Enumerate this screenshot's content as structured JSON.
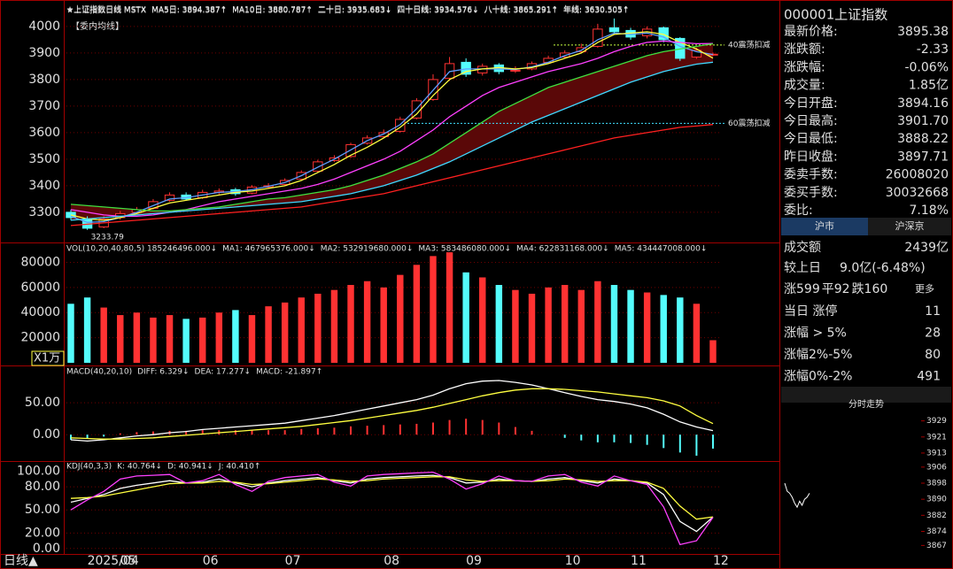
{
  "chart_data": [
    {
      "type": "candlestick",
      "title": "★上证指数日线 MSTX",
      "subtitle": "【委内均线】",
      "min_label": "3233.79",
      "categories": [
        null,
        "2025/04",
        null,
        "05",
        null,
        null,
        null,
        null,
        "06",
        null,
        null,
        null,
        null,
        "07",
        null,
        null,
        null,
        null,
        null,
        "08",
        null,
        null,
        null,
        null,
        "09",
        null,
        null,
        null,
        null,
        null,
        "10",
        null,
        null,
        null,
        "11",
        null,
        null,
        null,
        null,
        "12"
      ],
      "open": [
        3300,
        3275,
        3245,
        3280,
        3300,
        3315,
        3345,
        3365,
        3355,
        3375,
        3385,
        3372,
        3395,
        3405,
        3425,
        3455,
        3495,
        3510,
        3560,
        3585,
        3605,
        3655,
        3725,
        3805,
        3865,
        3825,
        3855,
        3835,
        3840,
        3865,
        3885,
        3905,
        3925,
        3995,
        3985,
        3965,
        3995,
        3955,
        3885,
        3894.16
      ],
      "high": [
        3310,
        3285,
        3285,
        3305,
        3320,
        3350,
        3375,
        3375,
        3385,
        3390,
        3392,
        3402,
        3410,
        3428,
        3458,
        3498,
        3515,
        3562,
        3590,
        3612,
        3660,
        3730,
        3820,
        3885,
        3880,
        3860,
        3862,
        3850,
        3868,
        3890,
        3910,
        3935,
        4010,
        4030,
        3995,
        4000,
        4000,
        3960,
        3920,
        3901.7
      ],
      "low": [
        3270,
        3233.79,
        3240,
        3272,
        3295,
        3310,
        3340,
        3345,
        3350,
        3368,
        3362,
        3368,
        3390,
        3400,
        3420,
        3450,
        3490,
        3505,
        3555,
        3578,
        3600,
        3650,
        3720,
        3795,
        3810,
        3815,
        3820,
        3825,
        3835,
        3860,
        3880,
        3900,
        3920,
        3970,
        3950,
        3955,
        3940,
        3870,
        3878,
        3888.22
      ],
      "close": [
        3280,
        3240,
        3275,
        3295,
        3310,
        3340,
        3365,
        3350,
        3375,
        3380,
        3370,
        3395,
        3400,
        3420,
        3450,
        3490,
        3505,
        3555,
        3580,
        3600,
        3650,
        3720,
        3800,
        3860,
        3820,
        3850,
        3830,
        3835,
        3860,
        3880,
        3900,
        3920,
        3990,
        3980,
        3960,
        3990,
        3950,
        3880,
        3910,
        3895.38
      ],
      "up_color": "#ff3232",
      "down_color": "#54fcfc",
      "series": [
        {
          "name": "MA5日: 3894.387↑",
          "color": "#5f9fff",
          "values": [
            3285,
            3262,
            3265,
            3280,
            3300,
            3325,
            3350,
            3355,
            3365,
            3375,
            3378,
            3385,
            3398,
            3412,
            3438,
            3470,
            3500,
            3535,
            3570,
            3595,
            3630,
            3690,
            3760,
            3830,
            3840,
            3840,
            3840,
            3838,
            3848,
            3865,
            3890,
            3910,
            3950,
            3975,
            3970,
            3975,
            3960,
            3925,
            3905,
            3894.387
          ]
        },
        {
          "name": "MA10日: 3880.787↑",
          "color": "#ffff40",
          "values": [
            3290,
            3275,
            3270,
            3280,
            3295,
            3315,
            3335,
            3345,
            3355,
            3365,
            3375,
            3380,
            3390,
            3400,
            3420,
            3450,
            3480,
            3515,
            3545,
            3580,
            3620,
            3670,
            3740,
            3800,
            3830,
            3840,
            3845,
            3840,
            3845,
            3860,
            3880,
            3900,
            3940,
            3970,
            3975,
            3980,
            3970,
            3940,
            3915,
            3880.787
          ]
        },
        {
          "name": "二十日: 3935.683↓",
          "color": "#ff40ff",
          "values": [
            3310,
            3300,
            3290,
            3285,
            3285,
            3290,
            3300,
            3310,
            3325,
            3340,
            3350,
            3360,
            3370,
            3380,
            3390,
            3405,
            3425,
            3450,
            3475,
            3500,
            3530,
            3570,
            3610,
            3660,
            3700,
            3740,
            3770,
            3790,
            3810,
            3830,
            3845,
            3860,
            3880,
            3905,
            3925,
            3940,
            3945,
            3940,
            3935,
            3935.683
          ]
        },
        {
          "name": "四十日线: 3934.576↓",
          "color": "#40e040",
          "values": [
            3330,
            3325,
            3320,
            3315,
            3310,
            3305,
            3305,
            3310,
            3315,
            3320,
            3330,
            3340,
            3350,
            3355,
            3365,
            3375,
            3385,
            3400,
            3420,
            3440,
            3465,
            3490,
            3520,
            3560,
            3600,
            3640,
            3680,
            3710,
            3740,
            3770,
            3790,
            3810,
            3830,
            3850,
            3870,
            3890,
            3905,
            3915,
            3925,
            3934.576
          ]
        },
        {
          "name": "八十线: 3865.291↑",
          "color": "#40d8ff",
          "values": [
            3270,
            3275,
            3280,
            3285,
            3290,
            3295,
            3300,
            3305,
            3310,
            3315,
            3320,
            3325,
            3330,
            3335,
            3340,
            3350,
            3360,
            3370,
            3385,
            3400,
            3420,
            3440,
            3465,
            3490,
            3520,
            3550,
            3580,
            3610,
            3640,
            3665,
            3690,
            3715,
            3740,
            3765,
            3790,
            3810,
            3830,
            3845,
            3858,
            3865.291
          ]
        },
        {
          "name": "年线: 3630.505↑",
          "color": "#ff2020",
          "values": [
            3250,
            3255,
            3260,
            3265,
            3270,
            3275,
            3280,
            3285,
            3290,
            3295,
            3300,
            3305,
            3310,
            3315,
            3320,
            3330,
            3340,
            3350,
            3360,
            3370,
            3385,
            3400,
            3415,
            3430,
            3445,
            3460,
            3475,
            3490,
            3505,
            3520,
            3535,
            3550,
            3565,
            3580,
            3590,
            3600,
            3610,
            3620,
            3625,
            3630.505
          ]
        }
      ],
      "band_color": "#5a0808",
      "annotations": [
        {
          "text": "40震荡扣减",
          "value": 3930,
          "color": "#c8ff40"
        },
        {
          "text": "60震荡扣减",
          "value": 3635,
          "color": "#40e0ff"
        }
      ],
      "ylim": [
        3193,
        4073
      ],
      "yticks": [
        3300,
        3400,
        3500,
        3600,
        3700,
        3800,
        3900,
        4000
      ],
      "grid": true
    },
    {
      "type": "bar",
      "title": "VOL(10,20,40,80,5) 185246496.000↓",
      "unit": "X1万",
      "legend_items": [
        {
          "text": "MA1: 467965376.000↓",
          "color": "#ffffff"
        },
        {
          "text": "MA2: 532919680.000↓",
          "color": "#ffff40"
        },
        {
          "text": "MA3: 583486080.000↓",
          "color": "#ff40ff"
        },
        {
          "text": "MA4: 622831168.000↓",
          "color": "#40e040"
        },
        {
          "text": "MA5: 434447008.000↓",
          "color": "#5f9fff"
        }
      ],
      "values": [
        47000,
        52000,
        44000,
        38000,
        40000,
        36000,
        38000,
        35000,
        36000,
        40000,
        42000,
        38000,
        45000,
        48000,
        52000,
        55000,
        58000,
        62000,
        65000,
        60000,
        70000,
        78000,
        85000,
        88000,
        72000,
        68000,
        62000,
        58000,
        55000,
        60000,
        62000,
        58000,
        65000,
        62000,
        58000,
        56000,
        54000,
        52000,
        47000,
        18000
      ],
      "ylim": [
        0,
        93000
      ],
      "yticks": [
        20000,
        40000,
        60000,
        80000
      ],
      "grid": true
    },
    {
      "type": "macd",
      "title": "MACD(40,20,10)",
      "bar_name": "MACD: -21.897↑",
      "up_color": "#ff3232",
      "down_color": "#54fcfc",
      "values": [
        -8,
        -6,
        -3,
        2,
        4,
        5,
        6,
        6,
        7,
        7,
        7,
        7,
        7,
        7,
        9,
        10,
        11,
        13,
        14,
        15,
        16,
        17,
        19,
        23,
        25,
        23,
        19,
        12,
        6,
        0,
        -5,
        -9,
        -12,
        -12,
        -13,
        -16,
        -21,
        -28,
        -33,
        -21.897
      ],
      "series": [
        {
          "name": "DIFF: 6.329↓",
          "color": "#ffffff",
          "values": [
            -8,
            -10,
            -8,
            -5,
            -2,
            0,
            3,
            5,
            8,
            10,
            12,
            14,
            16,
            18,
            22,
            26,
            30,
            35,
            40,
            45,
            50,
            55,
            62,
            72,
            80,
            84,
            85,
            82,
            78,
            72,
            66,
            60,
            55,
            52,
            48,
            42,
            32,
            20,
            12,
            6.329
          ]
        },
        {
          "name": "DEA: 17.277↓",
          "color": "#ffff40",
          "values": [
            -5,
            -6,
            -7,
            -7,
            -6,
            -5,
            -3,
            -1,
            1,
            3,
            5,
            7,
            9,
            11,
            13,
            16,
            19,
            22,
            26,
            30,
            34,
            38,
            43,
            49,
            55,
            61,
            66,
            70,
            72,
            72,
            71,
            69,
            67,
            64,
            61,
            58,
            53,
            45,
            30,
            17.277
          ]
        }
      ],
      "ylim": [
        -40,
        103
      ],
      "yticks": [
        {
          "value": 50,
          "label": "50.00"
        },
        {
          "value": 0,
          "label": "0.00"
        }
      ],
      "grid": true
    },
    {
      "type": "line",
      "title": "KDJ(40,3,3)",
      "series": [
        {
          "name": "K: 40.764↓",
          "color": "#ffffff",
          "values": [
            60,
            65,
            70,
            78,
            82,
            85,
            88,
            85,
            86,
            90,
            85,
            80,
            85,
            88,
            90,
            92,
            88,
            85,
            90,
            92,
            93,
            94,
            95,
            92,
            85,
            86,
            90,
            88,
            87,
            90,
            92,
            88,
            85,
            90,
            88,
            85,
            70,
            35,
            22,
            40.764
          ]
        },
        {
          "name": "D: 40.941↓",
          "color": "#ffff40",
          "values": [
            65,
            66,
            68,
            72,
            76,
            80,
            84,
            85,
            85,
            87,
            86,
            83,
            84,
            86,
            88,
            90,
            89,
            87,
            88,
            90,
            91,
            92,
            93,
            93,
            89,
            87,
            88,
            88,
            87,
            88,
            90,
            89,
            87,
            88,
            88,
            86,
            78,
            55,
            38,
            40.941
          ]
        },
        {
          "name": "J: 40.410↑",
          "color": "#ff40ff",
          "values": [
            50,
            63,
            74,
            90,
            94,
            95,
            96,
            85,
            88,
            96,
            83,
            74,
            87,
            92,
            94,
            96,
            86,
            81,
            94,
            96,
            97,
            98,
            99,
            90,
            77,
            84,
            94,
            88,
            87,
            94,
            96,
            86,
            81,
            94,
            88,
            83,
            54,
            5,
            10,
            40.41
          ]
        }
      ],
      "ylim": [
        -6,
        110
      ],
      "yticks": [
        {
          "value": 100,
          "label": "100.00"
        },
        {
          "value": 80,
          "label": "80.00"
        },
        {
          "value": 50,
          "label": "50.00"
        },
        {
          "value": 20,
          "label": "20.00"
        },
        {
          "value": 0,
          "label": "0.00"
        }
      ],
      "grid": true
    },
    {
      "type": "line",
      "title": "分时走势",
      "color": "#ffffff",
      "values": [
        3898,
        3894,
        3893,
        3891,
        3888,
        3886,
        3889,
        3887,
        3890,
        3891,
        3893
      ],
      "ylim": [
        3861,
        3935
      ],
      "yticks": [
        3929,
        3921,
        3913,
        3906,
        3898,
        3890,
        3882,
        3874,
        3867
      ],
      "grid": false
    }
  ],
  "quote_panel": {
    "title": "000001上证指数",
    "rows": [
      {
        "label": "最新价格:",
        "value": "3895.38",
        "color": "#40ff40"
      },
      {
        "label": "涨跌额:",
        "value": "-2.33",
        "color": "#40ff40"
      },
      {
        "label": "涨跌幅:",
        "value": "-0.06%",
        "color": "#40ff40"
      },
      {
        "label": "成交量:",
        "value": "1.85亿",
        "color": "#ffff40"
      },
      {
        "label": "今日开盘:",
        "value": "3894.16",
        "color": "#40ff40"
      },
      {
        "label": "今日最高:",
        "value": "3901.70",
        "color": "#ff4040"
      },
      {
        "label": "今日最低:",
        "value": "3888.22",
        "color": "#40ff40"
      },
      {
        "label": "昨日收盘:",
        "value": "3897.71",
        "color": "#e0e0e0"
      },
      {
        "label": "委卖手数:",
        "value": "26008020",
        "color": "#ffff40"
      },
      {
        "label": "委买手数:",
        "value": "30032668",
        "color": "#ffff40"
      },
      {
        "label": "委比:",
        "value": "7.18%",
        "color": "#ff4040"
      }
    ],
    "tabs": [
      "沪市",
      "沪深京"
    ],
    "stats": [
      {
        "label": "成交额",
        "value": "2439亿",
        "color": "#e0e0e0"
      },
      {
        "label": "较上日",
        "value": "9.0亿(-6.48%)",
        "color": "#40ff40"
      }
    ],
    "breadth": [
      {
        "text": "涨599",
        "color": "#ff4040"
      },
      {
        "text": "平92",
        "color": "#e0e0e0"
      },
      {
        "text": "跌160",
        "color": "#40ff40"
      }
    ],
    "more": "更多",
    "limits": [
      {
        "label": "当日 涨停",
        "value": "11",
        "color": "#ff4040"
      },
      {
        "label": "涨幅 > 5%",
        "value": "28",
        "color": "#ff4040"
      },
      {
        "label": "涨幅2%-5%",
        "value": "80",
        "color": "#ff4040"
      },
      {
        "label": "涨幅0%-2%",
        "value": "491",
        "color": "#ff4040"
      }
    ]
  },
  "ui": {
    "period": "日线▲"
  }
}
